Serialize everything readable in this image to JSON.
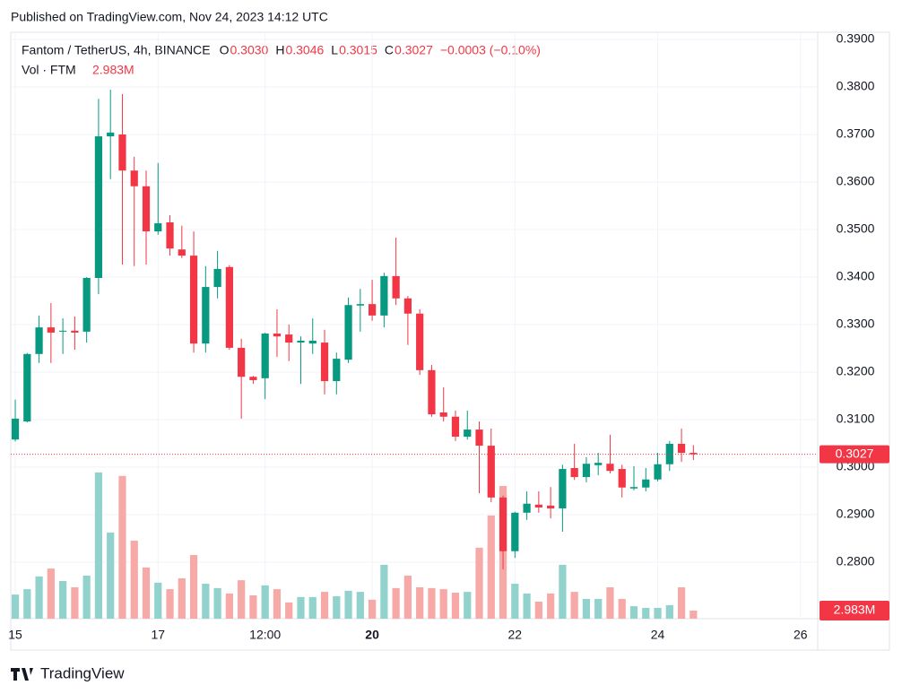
{
  "header": {
    "published": "Published on TradingView.com, Nov 24, 2023 14:12 UTC",
    "footer": "TradingView"
  },
  "chart_data": {
    "type": "candlestick",
    "title": "Fantom / TetherUS, 4h, BINANCE",
    "legend": {
      "o_label": "O",
      "o": "0.3030",
      "h_label": "H",
      "h": "0.3046",
      "l_label": "L",
      "l": "0.3015",
      "c_label": "C",
      "c": "0.3027",
      "change": "−0.0003 (−0.10%)",
      "vol_label": "Vol · FTM",
      "vol": "2.983M"
    },
    "up_color": "#089981",
    "down_color": "#f23645",
    "volume_up_color": "#92d2cc",
    "volume_down_color": "#f7a9a7",
    "candles": {
      "open": [
        0.3058,
        0.3096,
        0.3238,
        0.3294,
        0.3285,
        0.3287,
        0.3285,
        0.3398,
        0.3696,
        0.37,
        0.3624,
        0.3591,
        0.3496,
        0.3515,
        0.3458,
        0.3445,
        0.326,
        0.3379,
        0.3421,
        0.3251,
        0.319,
        0.3187,
        0.3281,
        0.3279,
        0.3262,
        0.326,
        0.3262,
        0.3181,
        0.3226,
        0.334,
        0.3343,
        0.3319,
        0.3402,
        0.3355,
        0.3323,
        0.3204,
        0.3115,
        0.3106,
        0.3064,
        0.3079,
        0.3045,
        0.2936,
        0.2823,
        0.2904,
        0.2921,
        0.2919,
        0.2913,
        0.2998,
        0.2979,
        0.3004,
        0.3007,
        0.2996,
        0.2955,
        0.2957,
        0.2974,
        0.3006,
        0.3049,
        0.303
      ],
      "high": [
        0.3142,
        0.324,
        0.3319,
        0.3345,
        0.3313,
        0.3317,
        0.34,
        0.3775,
        0.3794,
        0.3785,
        0.3653,
        0.3624,
        0.364,
        0.353,
        0.3508,
        0.3496,
        0.3423,
        0.3455,
        0.3425,
        0.327,
        0.3192,
        0.3283,
        0.3332,
        0.33,
        0.3275,
        0.3313,
        0.3289,
        0.3241,
        0.3357,
        0.3375,
        0.3394,
        0.3409,
        0.3483,
        0.336,
        0.3332,
        0.3215,
        0.3168,
        0.3119,
        0.3119,
        0.3096,
        0.3081,
        0.294,
        0.2906,
        0.2949,
        0.2949,
        0.2958,
        0.3005,
        0.3049,
        0.3021,
        0.303,
        0.3068,
        0.3005,
        0.3002,
        0.2998,
        0.303,
        0.3055,
        0.3081,
        0.3046
      ],
      "low": [
        0.3054,
        0.3094,
        0.3219,
        0.3219,
        0.3238,
        0.3247,
        0.3262,
        0.3364,
        0.3606,
        0.3426,
        0.3423,
        0.3426,
        0.3489,
        0.3445,
        0.344,
        0.3241,
        0.3241,
        0.3355,
        0.3247,
        0.3102,
        0.3175,
        0.3143,
        0.3232,
        0.3223,
        0.3175,
        0.3238,
        0.3153,
        0.3153,
        0.3219,
        0.3285,
        0.3308,
        0.3294,
        0.3341,
        0.3257,
        0.3194,
        0.3106,
        0.3096,
        0.3055,
        0.3058,
        0.2945,
        0.2926,
        0.2785,
        0.2809,
        0.2889,
        0.2904,
        0.2892,
        0.2864,
        0.2973,
        0.2968,
        0.2983,
        0.2987,
        0.2936,
        0.2951,
        0.2949,
        0.297,
        0.2992,
        0.3011,
        0.3015
      ],
      "close": [
        0.3102,
        0.3238,
        0.3294,
        0.3283,
        0.3287,
        0.3283,
        0.3398,
        0.3696,
        0.3704,
        0.3624,
        0.3591,
        0.3496,
        0.3513,
        0.346,
        0.3445,
        0.326,
        0.3379,
        0.3417,
        0.3251,
        0.319,
        0.3183,
        0.3281,
        0.3275,
        0.3262,
        0.3266,
        0.3266,
        0.3181,
        0.3228,
        0.3341,
        0.3343,
        0.3319,
        0.3402,
        0.3355,
        0.3323,
        0.3204,
        0.3111,
        0.3106,
        0.3064,
        0.3079,
        0.3045,
        0.2936,
        0.2823,
        0.2904,
        0.2923,
        0.2915,
        0.2913,
        0.2996,
        0.2979,
        0.3007,
        0.3009,
        0.2992,
        0.2957,
        0.2958,
        0.2974,
        0.3006,
        0.3049,
        0.303,
        0.3027
      ],
      "volume": [
        8.9,
        10.9,
        15.6,
        18.5,
        13.9,
        11.6,
        15.9,
        54.0,
        31.8,
        52.7,
        28.8,
        18.9,
        13.3,
        10.9,
        14.9,
        23.5,
        12.9,
        11.3,
        9.3,
        14.2,
        8.6,
        12.3,
        10.9,
        6.0,
        8.0,
        8.0,
        9.9,
        8.3,
        10.3,
        9.9,
        7.0,
        19.9,
        11.3,
        15.9,
        11.6,
        11.3,
        10.9,
        9.6,
        9.9,
        26.2,
        38.1,
        49.0,
        12.9,
        9.3,
        6.3,
        9.3,
        19.9,
        9.9,
        7.3,
        7.3,
        11.6,
        7.3,
        4.6,
        4.0,
        4.0,
        5.0,
        11.6,
        2.983
      ]
    },
    "xlim": [
      -0.38,
      67.45
    ],
    "xticks": [
      {
        "value": 0,
        "label": "15"
      },
      {
        "value": 12,
        "label": "17"
      },
      {
        "value": 21,
        "label": "12:00"
      },
      {
        "value": 30,
        "label": "20",
        "bold": true
      },
      {
        "value": 42,
        "label": "22"
      },
      {
        "value": 54,
        "label": "24"
      },
      {
        "value": 66,
        "label": "26"
      }
    ],
    "ylim": [
      0.2681,
      0.3915
    ],
    "yticks": [
      {
        "value": 0.39,
        "label": "0.3900"
      },
      {
        "value": 0.38,
        "label": "0.3800"
      },
      {
        "value": 0.37,
        "label": "0.3700"
      },
      {
        "value": 0.36,
        "label": "0.3600"
      },
      {
        "value": 0.35,
        "label": "0.3500"
      },
      {
        "value": 0.34,
        "label": "0.3400"
      },
      {
        "value": 0.33,
        "label": "0.3300"
      },
      {
        "value": 0.32,
        "label": "0.3200"
      },
      {
        "value": 0.31,
        "label": "0.3100"
      },
      {
        "value": 0.3,
        "label": "0.3000"
      },
      {
        "value": 0.29,
        "label": "0.2900"
      },
      {
        "value": 0.28,
        "label": "0.2800"
      }
    ],
    "volume_ylim": [
      0,
      216.5
    ],
    "last_price": {
      "value": 0.3027,
      "label": "0.3027"
    },
    "last_volume": {
      "value": 2.983,
      "label": "2.983M"
    },
    "grid": true
  }
}
